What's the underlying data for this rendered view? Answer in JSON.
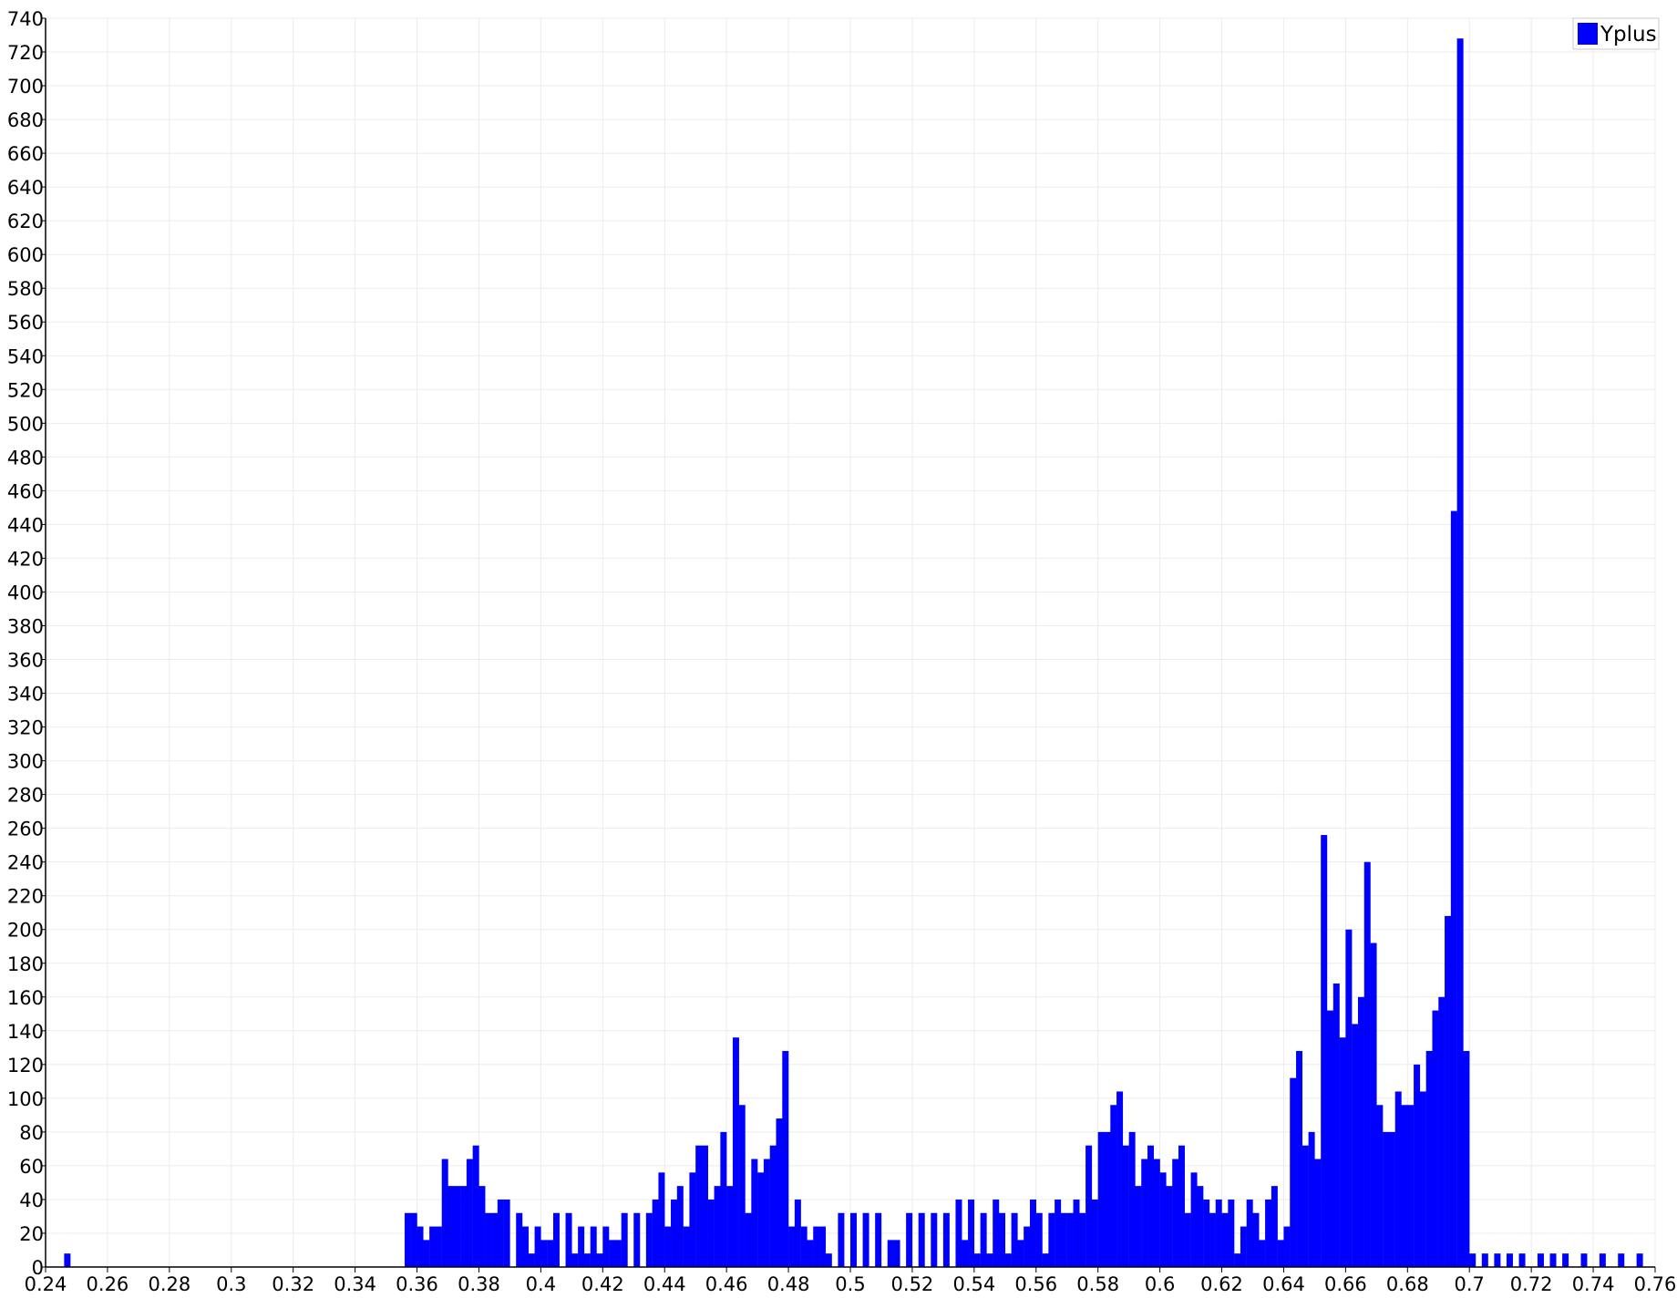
{
  "chart_data": {
    "type": "bar",
    "x_range": [
      0.24,
      0.76
    ],
    "ylim": [
      0,
      740
    ],
    "grid": true,
    "legend_position": "top-right",
    "legend_entries": [
      "Yplus"
    ],
    "series_color": "#0000ff",
    "bin_width": 0.002,
    "x_tick_labels": [
      "0.24",
      "0.26",
      "0.28",
      "0.3",
      "0.32",
      "0.34",
      "0.36",
      "0.38",
      "0.4",
      "0.42",
      "0.44",
      "0.46",
      "0.48",
      "0.5",
      "0.52",
      "0.54",
      "0.56",
      "0.58",
      "0.6",
      "0.62",
      "0.64",
      "0.66",
      "0.68",
      "0.7",
      "0.72",
      "0.74",
      "0.76"
    ],
    "y_tick_labels": [
      "0",
      "20",
      "40",
      "60",
      "80",
      "100",
      "120",
      "140",
      "160",
      "180",
      "200",
      "220",
      "240",
      "260",
      "280",
      "300",
      "320",
      "340",
      "360",
      "380",
      "400",
      "420",
      "440",
      "460",
      "480",
      "500",
      "520",
      "540",
      "560",
      "580",
      "600",
      "620",
      "640",
      "660",
      "680",
      "700",
      "720",
      "740"
    ],
    "series": [
      {
        "name": "Yplus",
        "x": [
          0.246,
          0.356,
          0.358,
          0.36,
          0.362,
          0.364,
          0.366,
          0.368,
          0.37,
          0.372,
          0.374,
          0.376,
          0.378,
          0.38,
          0.382,
          0.384,
          0.386,
          0.388,
          0.39,
          0.392,
          0.394,
          0.396,
          0.398,
          0.4,
          0.402,
          0.404,
          0.406,
          0.408,
          0.41,
          0.412,
          0.414,
          0.416,
          0.418,
          0.42,
          0.422,
          0.424,
          0.426,
          0.428,
          0.43,
          0.432,
          0.434,
          0.436,
          0.438,
          0.44,
          0.442,
          0.444,
          0.446,
          0.448,
          0.45,
          0.452,
          0.454,
          0.456,
          0.458,
          0.46,
          0.462,
          0.464,
          0.466,
          0.468,
          0.47,
          0.472,
          0.474,
          0.476,
          0.478,
          0.48,
          0.482,
          0.484,
          0.486,
          0.488,
          0.49,
          0.492,
          0.494,
          0.496,
          0.498,
          0.5,
          0.502,
          0.504,
          0.506,
          0.508,
          0.51,
          0.512,
          0.514,
          0.516,
          0.518,
          0.52,
          0.522,
          0.524,
          0.526,
          0.528,
          0.53,
          0.532,
          0.534,
          0.536,
          0.538,
          0.54,
          0.542,
          0.544,
          0.546,
          0.548,
          0.55,
          0.552,
          0.554,
          0.556,
          0.558,
          0.56,
          0.562,
          0.564,
          0.566,
          0.568,
          0.57,
          0.572,
          0.574,
          0.576,
          0.578,
          0.58,
          0.582,
          0.584,
          0.586,
          0.588,
          0.59,
          0.592,
          0.594,
          0.596,
          0.598,
          0.6,
          0.602,
          0.604,
          0.606,
          0.608,
          0.61,
          0.612,
          0.614,
          0.616,
          0.618,
          0.62,
          0.622,
          0.624,
          0.626,
          0.628,
          0.63,
          0.632,
          0.634,
          0.636,
          0.638,
          0.64,
          0.642,
          0.644,
          0.646,
          0.648,
          0.65,
          0.652,
          0.654,
          0.656,
          0.658,
          0.66,
          0.662,
          0.664,
          0.666,
          0.668,
          0.67,
          0.672,
          0.674,
          0.676,
          0.678,
          0.68,
          0.682,
          0.684,
          0.686,
          0.688,
          0.69,
          0.692,
          0.694,
          0.696,
          0.698,
          0.7,
          0.704,
          0.708,
          0.712,
          0.716,
          0.722,
          0.726,
          0.73,
          0.736,
          0.742,
          0.748,
          0.754
        ],
        "values": [
          8,
          32,
          32,
          24,
          16,
          24,
          24,
          64,
          48,
          48,
          48,
          64,
          72,
          48,
          32,
          32,
          40,
          40,
          0,
          32,
          24,
          8,
          24,
          16,
          16,
          32,
          0,
          32,
          8,
          24,
          8,
          24,
          8,
          24,
          16,
          16,
          32,
          0,
          32,
          0,
          32,
          40,
          56,
          24,
          40,
          48,
          24,
          56,
          72,
          72,
          40,
          48,
          80,
          48,
          136,
          96,
          32,
          64,
          56,
          64,
          72,
          88,
          128,
          24,
          40,
          24,
          16,
          24,
          24,
          8,
          0,
          32,
          0,
          32,
          0,
          32,
          0,
          32,
          0,
          16,
          16,
          0,
          32,
          0,
          32,
          0,
          32,
          0,
          32,
          0,
          40,
          16,
          40,
          8,
          32,
          8,
          40,
          32,
          8,
          32,
          16,
          24,
          40,
          32,
          8,
          32,
          40,
          32,
          32,
          40,
          32,
          72,
          40,
          80,
          80,
          96,
          104,
          72,
          80,
          48,
          64,
          72,
          64,
          56,
          48,
          64,
          72,
          32,
          56,
          48,
          40,
          32,
          40,
          32,
          40,
          8,
          24,
          40,
          32,
          16,
          40,
          48,
          16,
          24,
          112,
          128,
          72,
          80,
          64,
          256,
          152,
          168,
          136,
          200,
          144,
          160,
          240,
          192,
          96,
          80,
          80,
          104,
          96,
          96,
          120,
          104,
          128,
          152,
          160,
          208,
          448,
          728,
          128,
          8,
          8,
          8,
          8,
          8,
          8,
          8,
          8,
          8,
          8,
          8,
          8
        ]
      }
    ]
  }
}
